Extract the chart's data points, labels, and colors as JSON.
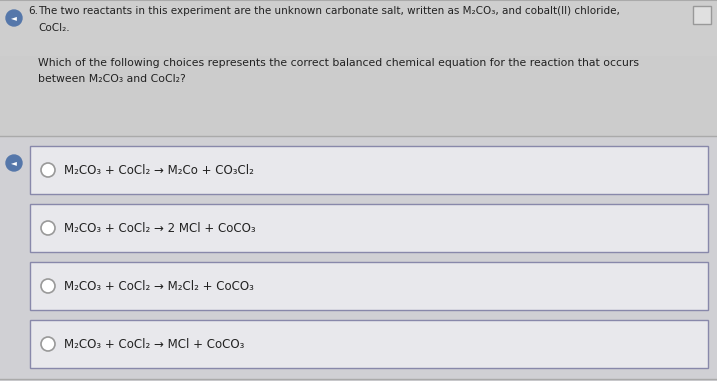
{
  "bg_color": "#d8d8d8",
  "header_bg": "#d0d0d0",
  "choices_area_bg": "#d4d4d8",
  "box_bg": "#e8e8ec",
  "box_border": "#8888aa",
  "text_color": "#222222",
  "subtext_color": "#333333",
  "question_number": "6.",
  "header_line1": "The two reactants in this experiment are the unknown carbonate salt, written as M₂CO₃, and cobalt(II) chloride,",
  "header_line2": "CoCl₂.",
  "subq_line1": "Which of the following choices represents the correct balanced chemical equation for the reaction that occurs",
  "subq_line2": "between M₂CO₃ and CoCl₂?",
  "choices": [
    "M₂CO₃ + CoCl₂ → M₂Co + CO₃Cl₂",
    "M₂CO₃ + CoCl₂ → 2 MCl + CoCO₃",
    "M₂CO₃ + CoCl₂ → M₂Cl₂ + CoCO₃",
    "M₂CO₃ + CoCl₂ → MCl + CoCO₃"
  ],
  "font_size_header": 7.5,
  "font_size_choices": 8.5,
  "font_size_subq": 7.8,
  "speaker_color": "#5577aa",
  "bookmark_bg": "#e0e0e0",
  "sep_line_color": "#aaaaaa",
  "radio_edge": "#999999"
}
